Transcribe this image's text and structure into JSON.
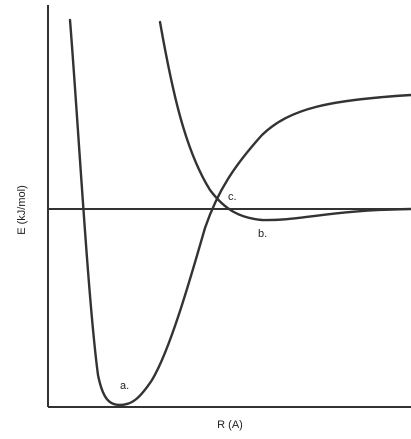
{
  "axes": {
    "y_label": "E (kJ/mol)",
    "x_label": "R (A)"
  },
  "points": [
    {
      "label": "a."
    },
    {
      "label": "b."
    },
    {
      "label": "c."
    }
  ]
}
